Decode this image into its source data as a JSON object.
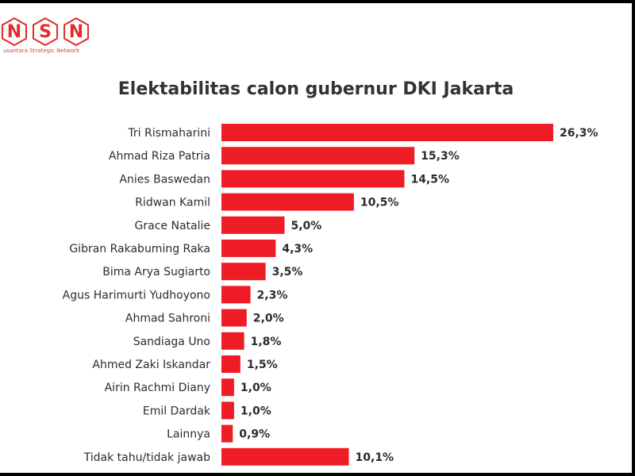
{
  "logo": {
    "letters": [
      "N",
      "S",
      "N"
    ],
    "tagline": "usantara Strategic Network"
  },
  "chart_data": {
    "type": "bar",
    "orientation": "horizontal",
    "title": "Elektabilitas calon gubernur DKI Jakarta",
    "categories": [
      "Tri Rismaharini",
      "Ahmad Riza Patria",
      "Anies Baswedan",
      "Ridwan Kamil",
      "Grace Natalie",
      "Gibran Rakabuming Raka",
      "Bima Arya Sugiarto",
      "Agus Harimurti Yudhoyono",
      "Ahmad Sahroni",
      "Sandiaga Uno",
      "Ahmed Zaki Iskandar",
      "Airin Rachmi Diany",
      "Emil Dardak",
      "Lainnya",
      "Tidak tahu/tidak jawab"
    ],
    "values": [
      26.3,
      15.3,
      14.5,
      10.5,
      5.0,
      4.3,
      3.5,
      2.3,
      2.0,
      1.8,
      1.5,
      1.0,
      1.0,
      0.9,
      10.1
    ],
    "labels": [
      "26,3%",
      "15,3%",
      "14,5%",
      "10,5%",
      "5,0%",
      "4,3%",
      "3,5%",
      "2,3%",
      "2,0%",
      "1,8%",
      "1,5%",
      "1,0%",
      "1,0%",
      "0,9%",
      "10,1%"
    ],
    "bar_color": "#ee1c25",
    "grid": false,
    "legend": "none"
  }
}
